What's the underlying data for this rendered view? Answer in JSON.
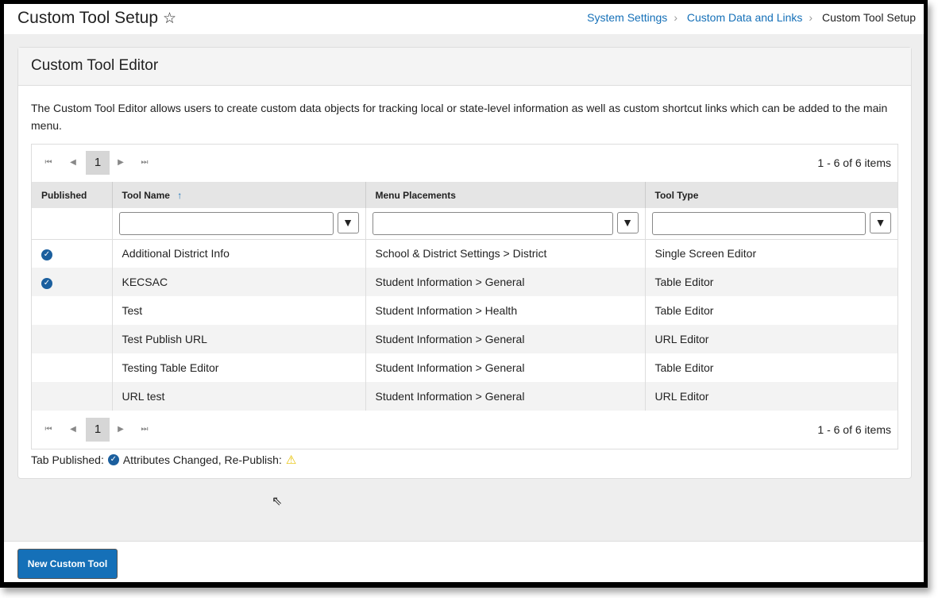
{
  "header": {
    "title": "Custom Tool Setup",
    "breadcrumbs": [
      "System Settings",
      "Custom Data and Links",
      "Custom Tool Setup"
    ]
  },
  "card": {
    "title": "Custom Tool Editor",
    "description": "The Custom Tool Editor allows users to create custom data objects for tracking local or state-level information as well as custom shortcut links which can be added to the main menu."
  },
  "pager": {
    "page": "1",
    "count": "1 - 6 of 6 items"
  },
  "columns": [
    "Published",
    "Tool Name",
    "Menu Placements",
    "Tool Type"
  ],
  "rows": [
    {
      "published": true,
      "name": "Additional District Info",
      "menu": "School & District Settings > District",
      "type": "Single Screen Editor"
    },
    {
      "published": true,
      "name": "KECSAC",
      "menu": "Student Information > General",
      "type": "Table Editor"
    },
    {
      "published": false,
      "name": "Test",
      "menu": "Student Information > Health",
      "type": "Table Editor"
    },
    {
      "published": false,
      "name": "Test Publish URL",
      "menu": "Student Information > General",
      "type": "URL Editor"
    },
    {
      "published": false,
      "name": "Testing Table Editor",
      "menu": "Student Information > General",
      "type": "Table Editor"
    },
    {
      "published": false,
      "name": "URL test",
      "menu": "Student Information > General",
      "type": "URL Editor"
    }
  ],
  "legend": {
    "published": "Tab Published:",
    "changed": "Attributes Changed, Re-Publish:"
  },
  "footer": {
    "new_button": "New Custom Tool"
  },
  "colors": {
    "accent": "#1570b8",
    "check": "#1b5f9e",
    "warning": "#e8c100"
  }
}
